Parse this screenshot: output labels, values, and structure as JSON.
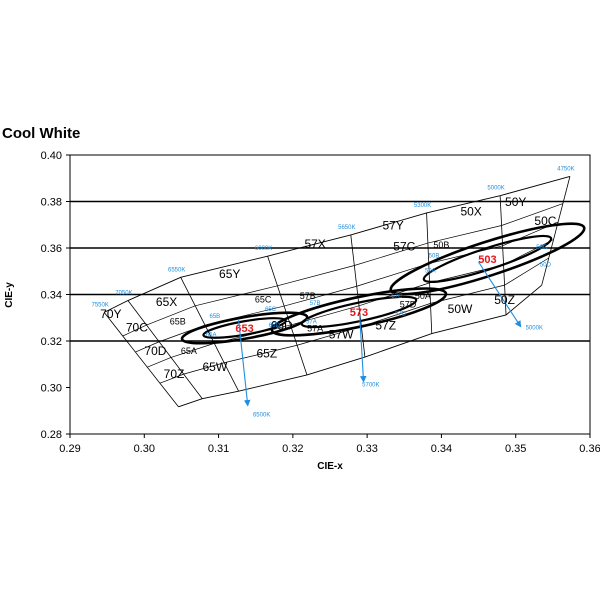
{
  "chart_data": {
    "type": "scatter",
    "title": "Cool White",
    "xlabel": "CIE-x",
    "ylabel": "CIE-y",
    "xlim": [
      0.29,
      0.36
    ],
    "ylim": [
      0.28,
      0.4
    ],
    "x_ticks": [
      "0.29",
      "0.30",
      "0.31",
      "0.32",
      "0.33",
      "0.34",
      "0.35",
      "0.36"
    ],
    "y_ticks": [
      "0.28",
      "0.30",
      "0.32",
      "0.34",
      "0.36",
      "0.38",
      "0.40"
    ],
    "major_gridlines_y": [
      0.32,
      0.34,
      0.36,
      0.38
    ],
    "colors": {
      "grid": "#000000",
      "cct": "#1e8fe0",
      "center": "#e0181e",
      "frame": "#000000"
    },
    "cct_lines": [
      {
        "label": "7550K",
        "top": [
          0.2946,
          0.3323
        ],
        "bottom": [
          0.3046,
          0.2917
        ]
      },
      {
        "label": "7050K",
        "top": [
          0.2978,
          0.3374
        ],
        "bottom": [
          0.3078,
          0.2952
        ]
      },
      {
        "label": "6550K",
        "top": [
          0.3049,
          0.3474
        ],
        "bottom": [
          0.3127,
          0.2984
        ]
      },
      {
        "label": "6000K",
        "top": [
          0.3166,
          0.3565
        ],
        "bottom": [
          0.3219,
          0.3054
        ]
      },
      {
        "label": "5650K",
        "top": [
          0.3278,
          0.3656
        ],
        "bottom": [
          0.3297,
          0.3131
        ]
      },
      {
        "label": "5300K",
        "top": [
          0.338,
          0.3751
        ],
        "bottom": [
          0.3387,
          0.3232
        ]
      },
      {
        "label": "5000K",
        "top": [
          0.3479,
          0.3825
        ],
        "bottom": [
          0.3487,
          0.3312
        ]
      },
      {
        "label": "4750K",
        "top": [
          0.3573,
          0.3908
        ],
        "bottom": [
          0.3535,
          0.344
        ]
      }
    ],
    "cct_callouts": [
      {
        "label": "6500K",
        "from": [
          0.3127,
          0.329
        ],
        "to": [
          0.3139,
          0.2932
        ],
        "label_at": [
          0.3158,
          0.2875
        ]
      },
      {
        "label": "5700K",
        "from": [
          0.329,
          0.331
        ],
        "to": [
          0.3295,
          0.3035
        ],
        "label_at": [
          0.3305,
          0.3005
        ]
      },
      {
        "label": "5000K",
        "from": [
          0.345,
          0.354
        ],
        "to": [
          0.3505,
          0.327
        ],
        "label_at": [
          0.3525,
          0.325
        ]
      }
    ],
    "bins": [
      {
        "label": "70Y",
        "at": [
          0.2955,
          0.33
        ],
        "size": "large"
      },
      {
        "label": "65X",
        "at": [
          0.303,
          0.335
        ],
        "size": "large"
      },
      {
        "label": "70C",
        "at": [
          0.299,
          0.324
        ],
        "size": "large"
      },
      {
        "label": "65B",
        "at": [
          0.3045,
          0.327
        ],
        "size": "small"
      },
      {
        "label": "70D",
        "at": [
          0.3015,
          0.314
        ],
        "size": "large"
      },
      {
        "label": "65A",
        "at": [
          0.306,
          0.3145
        ],
        "size": "small"
      },
      {
        "label": "70Z",
        "at": [
          0.304,
          0.304
        ],
        "size": "large"
      },
      {
        "label": "65W",
        "at": [
          0.3095,
          0.307
        ],
        "size": "large"
      },
      {
        "label": "65Y",
        "at": [
          0.3115,
          0.347
        ],
        "size": "large"
      },
      {
        "label": "65C",
        "at": [
          0.316,
          0.3365
        ],
        "size": "small"
      },
      {
        "label": "65D",
        "at": [
          0.3185,
          0.325
        ],
        "size": "large"
      },
      {
        "label": "65Z",
        "at": [
          0.3165,
          0.313
        ],
        "size": "large"
      },
      {
        "label": "57X",
        "at": [
          0.323,
          0.36
        ],
        "size": "large"
      },
      {
        "label": "57B",
        "at": [
          0.322,
          0.338
        ],
        "size": "small"
      },
      {
        "label": "57A",
        "at": [
          0.323,
          0.324
        ],
        "size": "small"
      },
      {
        "label": "57W",
        "at": [
          0.3265,
          0.321
        ],
        "size": "large"
      },
      {
        "label": "57Y",
        "at": [
          0.3335,
          0.368
        ],
        "size": "large"
      },
      {
        "label": "57C",
        "at": [
          0.335,
          0.359
        ],
        "size": "large"
      },
      {
        "label": "57D",
        "at": [
          0.3355,
          0.3345
        ],
        "size": "small"
      },
      {
        "label": "57Z",
        "at": [
          0.3325,
          0.325
        ],
        "size": "large"
      },
      {
        "label": "50X",
        "at": [
          0.344,
          0.374
        ],
        "size": "large"
      },
      {
        "label": "50B",
        "at": [
          0.34,
          0.36
        ],
        "size": "small"
      },
      {
        "label": "50A",
        "at": [
          0.3375,
          0.338
        ],
        "size": "small"
      },
      {
        "label": "50W",
        "at": [
          0.3425,
          0.332
        ],
        "size": "large"
      },
      {
        "label": "50Y",
        "at": [
          0.35,
          0.378
        ],
        "size": "large"
      },
      {
        "label": "50C",
        "at": [
          0.354,
          0.37
        ],
        "size": "large"
      },
      {
        "label": "50Z",
        "at": [
          0.3485,
          0.336
        ],
        "size": "large"
      }
    ],
    "ellipses": [
      {
        "center_label": "653",
        "center": [
          0.3135,
          0.3256
        ],
        "rx": 0.0045,
        "ry": 0.004,
        "rotate": -10
      },
      {
        "center_label": "573",
        "center": [
          0.3289,
          0.3325
        ],
        "rx": 0.0063,
        "ry": 0.0055,
        "rotate": -12
      },
      {
        "center_label": "503",
        "center": [
          0.3462,
          0.3553
        ],
        "rx": 0.0072,
        "ry": 0.0063,
        "rotate": -18
      }
    ],
    "sub_bins": [
      {
        "label": "65B",
        "at": [
          0.3095,
          0.33
        ]
      },
      {
        "label": "65A",
        "at": [
          0.309,
          0.322
        ]
      },
      {
        "label": "65C",
        "at": [
          0.317,
          0.333
        ]
      },
      {
        "label": "65D",
        "at": [
          0.3175,
          0.326
        ]
      },
      {
        "label": "57B",
        "at": [
          0.323,
          0.3355
        ]
      },
      {
        "label": "57A",
        "at": [
          0.3225,
          0.3275
        ]
      },
      {
        "label": "57C",
        "at": [
          0.334,
          0.3385
        ]
      },
      {
        "label": "57D",
        "at": [
          0.3345,
          0.331
        ]
      },
      {
        "label": "50B",
        "at": [
          0.339,
          0.356
        ]
      },
      {
        "label": "50A",
        "at": [
          0.3385,
          0.3495
        ]
      },
      {
        "label": "50C",
        "at": [
          0.3535,
          0.3595
        ]
      },
      {
        "label": "50D",
        "at": [
          0.354,
          0.352
        ]
      }
    ]
  }
}
